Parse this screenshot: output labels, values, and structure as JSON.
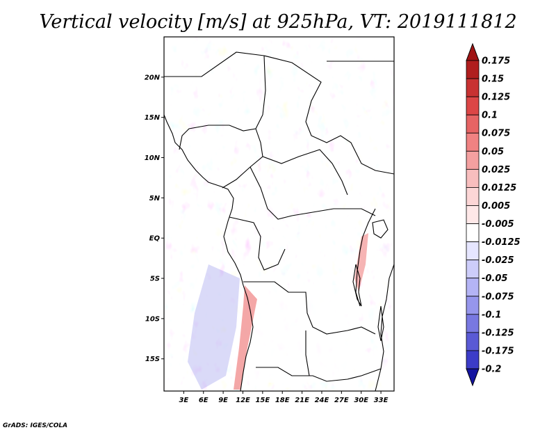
{
  "title": "Vertical velocity [m/s] at 925hPa, VT: 2019111812",
  "credit": "GrADS: IGES/COLA",
  "map": {
    "lon_range": [
      0,
      35
    ],
    "lat_range": [
      -19,
      25
    ],
    "lat_ticks": [
      {
        "value": 20,
        "label": "20N"
      },
      {
        "value": 15,
        "label": "15N"
      },
      {
        "value": 10,
        "label": "10N"
      },
      {
        "value": 5,
        "label": "5N"
      },
      {
        "value": 0,
        "label": "EQ"
      },
      {
        "value": -5,
        "label": "5S"
      },
      {
        "value": -10,
        "label": "10S"
      },
      {
        "value": -15,
        "label": "15S"
      }
    ],
    "lon_ticks": [
      {
        "value": 3,
        "label": "3E"
      },
      {
        "value": 6,
        "label": "6E"
      },
      {
        "value": 9,
        "label": "9E"
      },
      {
        "value": 12,
        "label": "12E"
      },
      {
        "value": 15,
        "label": "15E"
      },
      {
        "value": 18,
        "label": "18E"
      },
      {
        "value": 21,
        "label": "21E"
      },
      {
        "value": 24,
        "label": "24E"
      },
      {
        "value": 27,
        "label": "27E"
      },
      {
        "value": 30,
        "label": "30E"
      },
      {
        "value": 33,
        "label": "33E"
      }
    ]
  },
  "colorbar": {
    "levels": [
      {
        "label": "0.175",
        "color": "#b01e1e"
      },
      {
        "label": "0.15",
        "color": "#c83232"
      },
      {
        "label": "0.125",
        "color": "#dc4646"
      },
      {
        "label": "0.1",
        "color": "#e66464"
      },
      {
        "label": "0.075",
        "color": "#f08282"
      },
      {
        "label": "0.05",
        "color": "#f4a0a0"
      },
      {
        "label": "0.025",
        "color": "#f8bebe"
      },
      {
        "label": "0.0125",
        "color": "#fcd6d6"
      },
      {
        "label": "0.005",
        "color": "#fee8e8"
      },
      {
        "label": "-0.005",
        "color": "#ffffff"
      },
      {
        "label": "-0.0125",
        "color": "#e6e6ff"
      },
      {
        "label": "-0.025",
        "color": "#cdcdfa"
      },
      {
        "label": "-0.05",
        "color": "#b4b4f5"
      },
      {
        "label": "-0.075",
        "color": "#9696ec"
      },
      {
        "label": "-0.1",
        "color": "#7878e1"
      },
      {
        "label": "-0.125",
        "color": "#5a5ad5"
      },
      {
        "label": "-0.175",
        "color": "#3c3cc8"
      },
      {
        "label": "-0.2",
        "color": "#2323b4"
      }
    ],
    "top_arrow_color": "#a01414",
    "bottom_arrow_color": "#1414a0"
  }
}
